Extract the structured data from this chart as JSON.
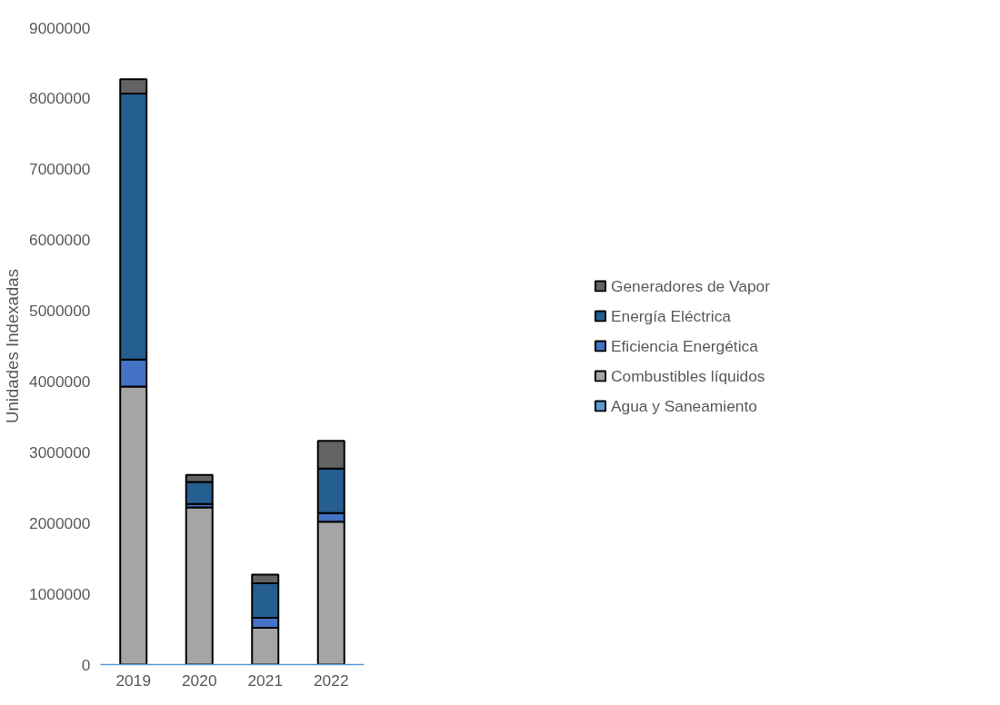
{
  "chart_data": {
    "type": "bar",
    "stacked": true,
    "ylabel": "Unidades Indexadas",
    "categories": [
      "2019",
      "2020",
      "2021",
      "2022"
    ],
    "series": [
      {
        "name": "Agua y Saneamiento",
        "color": "#5b9bd5",
        "values": [
          null,
          null,
          null,
          null
        ]
      },
      {
        "name": "Combustibles líquidos",
        "color": "#a5a5a5",
        "values": [
          3930000,
          2220000,
          520000,
          2020000
        ]
      },
      {
        "name": "Eficiencia Energética",
        "color": "#4472c4",
        "values": [
          380000,
          50000,
          140000,
          120000
        ]
      },
      {
        "name": "Energía Eléctrica",
        "color": "#255e91",
        "values": [
          3760000,
          310000,
          490000,
          630000
        ]
      },
      {
        "name": "Generadores de Vapor",
        "color": "#636363",
        "values": [
          200000,
          100000,
          120000,
          390000
        ]
      }
    ],
    "ylim": [
      0,
      9000000
    ],
    "yticks": [
      0,
      1000000,
      2000000,
      3000000,
      4000000,
      5000000,
      6000000,
      7000000,
      8000000,
      9000000
    ],
    "grid": false,
    "legend": "right"
  }
}
